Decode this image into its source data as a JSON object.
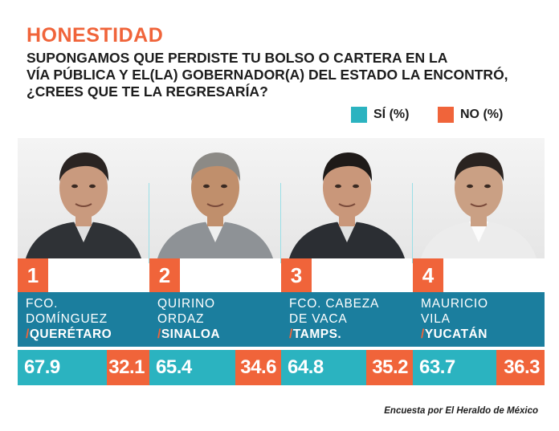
{
  "title": "HONESTIDAD",
  "question": [
    "SUPONGAMOS QUE PERDISTE TU BOLSO O CARTERA EN LA",
    "VÍA PÚBLICA Y EL(LA) GOBERNADOR(A) DEL ESTADO LA ENCONTRÓ,",
    "¿CREES QUE TE LA REGRESARÍA?"
  ],
  "legend": {
    "si": "SÍ (%)",
    "no": "NO (%)"
  },
  "colors": {
    "si": "#2bb3c0",
    "no": "#f0643a",
    "name_bg": "#1b7e9e"
  },
  "source": "Encuesta por El Heraldo de México",
  "chart_data": {
    "type": "bar",
    "title": "HONESTIDAD",
    "series_labels": [
      "SÍ (%)",
      "NO (%)"
    ],
    "categories": [
      "FCO. DOMÍNGUEZ /QUERÉTARO",
      "QUIRINO ORDAZ /SINALOA",
      "FCO. CABEZA DE VACA /TAMPS.",
      "MAURICIO VILA /YUCATÁN"
    ],
    "entries": [
      {
        "rank": "1",
        "name": [
          "FCO.",
          "DOMÍNGUEZ"
        ],
        "state": "QUERÉTARO",
        "si": 67.9,
        "no": 32.1,
        "si_label": "67.9",
        "no_label": "32.1"
      },
      {
        "rank": "2",
        "name": [
          "QUIRINO",
          "ORDAZ"
        ],
        "state": "SINALOA",
        "si": 65.4,
        "no": 34.6,
        "si_label": "65.4",
        "no_label": "34.6"
      },
      {
        "rank": "3",
        "name": [
          "FCO. CABEZA",
          "DE VACA"
        ],
        "state": "TAMPS.",
        "si": 64.8,
        "no": 35.2,
        "si_label": "64.8",
        "no_label": "35.2"
      },
      {
        "rank": "4",
        "name": [
          "MAURICIO",
          "VILA"
        ],
        "state": "YUCATÁN",
        "si": 63.7,
        "no": 36.3,
        "si_label": "63.7",
        "no_label": "36.3"
      }
    ]
  }
}
